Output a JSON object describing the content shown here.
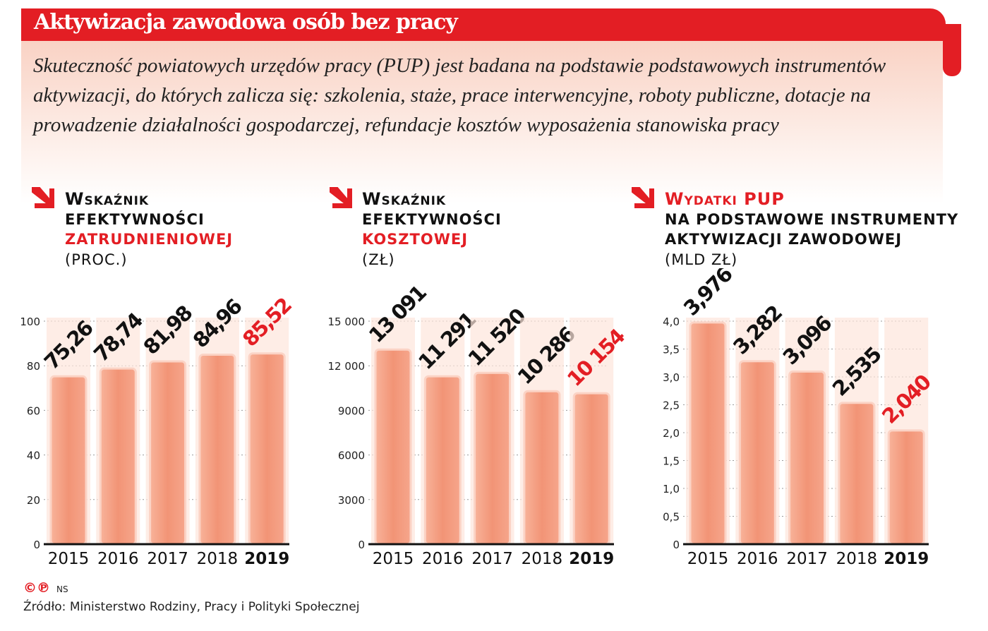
{
  "title": "Aktywizacja zawodowa osób bez pracy",
  "lead": "Skuteczność powiatowych urzędów pracy (PUP) jest badana na podstawie podstawowych instrumentów aktywizacji, do których zalicza się: szkolenia, staże, prace interwencyjne, roboty publiczne, dotacje na prowadzenie działalności gospodarczej, refundacje kosztów wyposażenia stanowiska pracy",
  "colors": {
    "accent": "#e31e24",
    "bar": "#f29476",
    "bar_light": "#f8c4b0"
  },
  "chart_data": [
    {
      "type": "bar",
      "title_lines": [
        "Wskaźnik",
        "efektywności"
      ],
      "title_red": "zatrudnieniowej",
      "unit": "(proc.)",
      "categories": [
        "2015",
        "2016",
        "2017",
        "2018",
        "2019"
      ],
      "values": [
        75.26,
        78.74,
        81.98,
        84.96,
        85.52
      ],
      "labels": [
        "75,26",
        "78,74",
        "81,98",
        "84,96",
        "85,52"
      ],
      "ylim": [
        0,
        100
      ],
      "yticks": [
        0,
        20,
        40,
        60,
        80,
        100
      ],
      "ytick_labels": [
        "0",
        "20",
        "40",
        "60",
        "80",
        "100"
      ],
      "grid": true,
      "highlight_last": true
    },
    {
      "type": "bar",
      "title_lines": [
        "Wskaźnik",
        "efektywności"
      ],
      "title_red": "kosztowej",
      "unit": "(zł)",
      "categories": [
        "2015",
        "2016",
        "2017",
        "2018",
        "2019"
      ],
      "values": [
        13091,
        11291,
        11520,
        10286,
        10154
      ],
      "labels": [
        "13 091",
        "11 291",
        "11 520",
        "10 286",
        "10 154"
      ],
      "ylim": [
        0,
        15000
      ],
      "yticks": [
        0,
        3000,
        6000,
        9000,
        12000,
        15000
      ],
      "ytick_labels": [
        "0",
        "3000",
        "6000",
        "9000",
        "12 000",
        "15 000"
      ],
      "grid": true,
      "highlight_last": true
    },
    {
      "type": "bar",
      "title_red_first": "Wydatki PUP",
      "title_lines": [
        "na podstawowe instrumenty",
        "aktywizacji zawodowej"
      ],
      "unit": "(mld zł)",
      "categories": [
        "2015",
        "2016",
        "2017",
        "2018",
        "2019"
      ],
      "values": [
        3.976,
        3.282,
        3.096,
        2.535,
        2.04
      ],
      "labels": [
        "3,976",
        "3,282",
        "3,096",
        "2,535",
        "2,040"
      ],
      "ylim": [
        0,
        4
      ],
      "yticks": [
        0,
        0.5,
        1,
        1.5,
        2,
        2.5,
        3,
        3.5,
        4
      ],
      "ytick_labels": [
        "0",
        "0,5",
        "1,0",
        "1,5",
        "2,0",
        "2,5",
        "3,0",
        "3,5",
        "4,0"
      ],
      "grid": true,
      "highlight_last": true
    }
  ],
  "footer": {
    "copyright": "©℗",
    "author": "NS",
    "source": "Źródło:  Ministerstwo Rodziny, Pracy i Polityki Społecznej"
  }
}
